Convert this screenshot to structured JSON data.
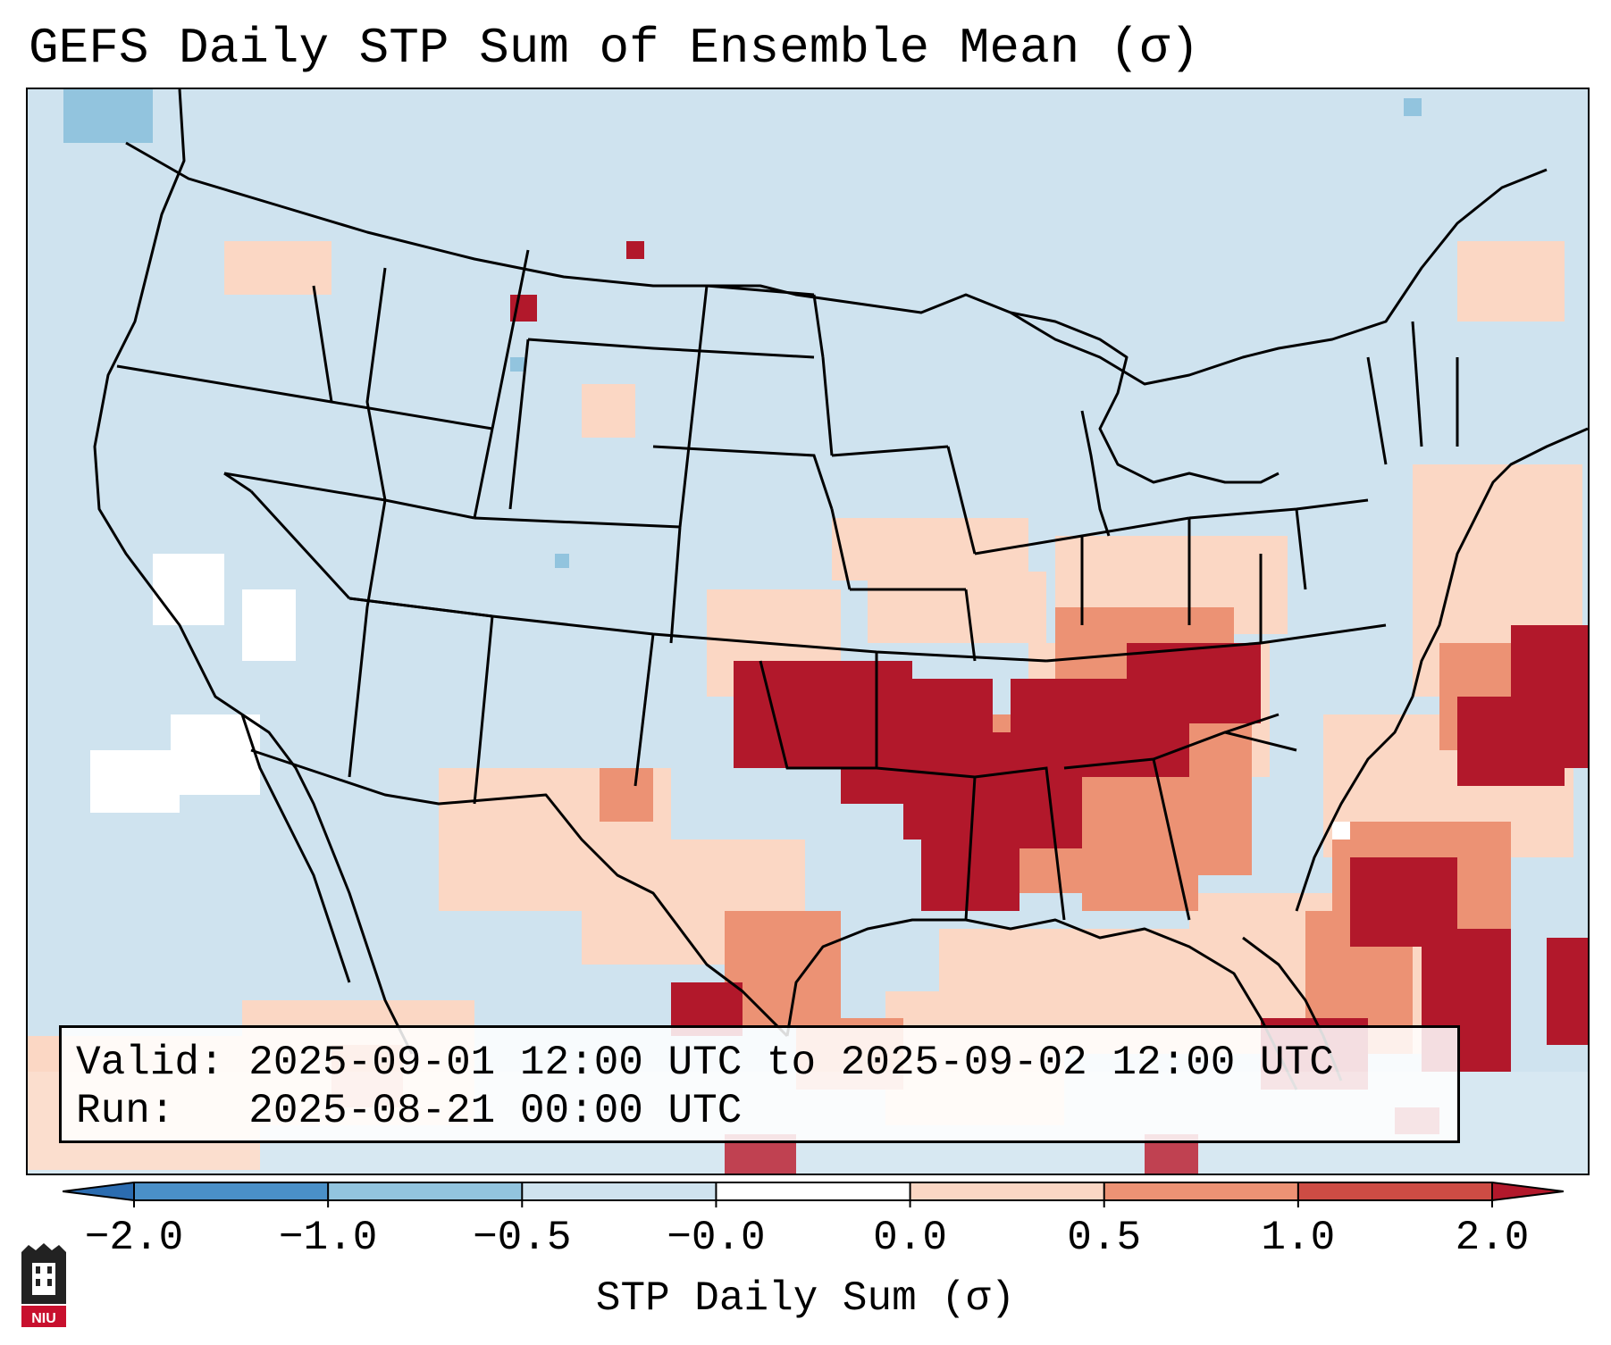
{
  "title": "GEFS Daily STP Sum of Ensemble Mean (σ)",
  "info": {
    "valid_line": "Valid: 2025-09-01 12:00 UTC to 2025-09-02 12:00 UTC",
    "run_line": "Run:   2025-08-21 00:00 UTC"
  },
  "colorbar": {
    "label": "STP Daily Sum (σ)",
    "ticks": [
      "−2.0",
      "−1.0",
      "−0.5",
      "−0.0",
      "0.0",
      "0.5",
      "1.0",
      "2.0"
    ],
    "colors": [
      "#2b6cb0",
      "#4a90c8",
      "#92c4de",
      "#cfe3ef",
      "#ffffff",
      "#fbd7c4",
      "#ec9274",
      "#cd4c44",
      "#b2182b"
    ]
  },
  "logo": {
    "text": "NIU"
  },
  "map_layers": [
    "ocean-background",
    "stp-grid",
    "country-borders",
    "state-borders",
    "coastlines"
  ]
}
